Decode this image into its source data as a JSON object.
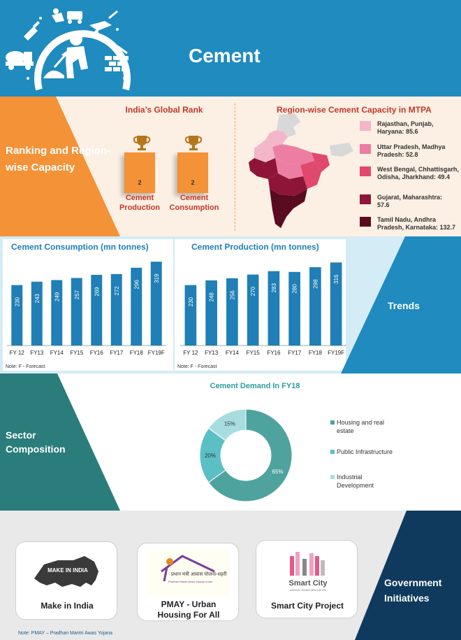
{
  "header": {
    "title": "Cement",
    "colors": {
      "primary": "#1f8bbf"
    },
    "icons": [
      "trowel-icon",
      "miner-cart-icon",
      "cement-mixer-truck-icon",
      "construction-worker-icon",
      "brick-wall-icon",
      "wheelbarrow-icon"
    ]
  },
  "ranking": {
    "section_label": "Ranking and Region-wise Capacity",
    "rank_title": "India’s Global Rank",
    "items": [
      {
        "rank": "2",
        "label_line1": "Cement",
        "label_line2": "Production"
      },
      {
        "rank": "2",
        "label_line1": "Cement",
        "label_line2": "Consumption"
      }
    ],
    "colors": {
      "orange": "#f39237",
      "accent_text": "#c0392b",
      "background": "#fcefe3"
    }
  },
  "region": {
    "title": "Region-wise Cement Capacity in MTPA",
    "legend": [
      {
        "color": "#f4b6c9",
        "line1": "Rajasthan, Punjab,",
        "line2": "Haryana: 85.6",
        "line3": ""
      },
      {
        "color": "#ec7ea3",
        "line1": "Uttar Pradesh, Madhya",
        "line2": "Pradesh: 52.8",
        "line3": ""
      },
      {
        "color": "#e0486e",
        "line1": "West Bengal, Chhattisgarh,",
        "line2": "Odisha, Jharkhand: 49.4",
        "line3": ""
      },
      {
        "color": "#8e1538",
        "line1": "Gujarat, Maharashtra:",
        "line2": "57.6",
        "line3": ""
      },
      {
        "color": "#5a0b20",
        "line1": "Tamil Nadu, Andhra",
        "line2": "Pradesh, Karnataka: 132.7",
        "line3": ""
      }
    ]
  },
  "trends": {
    "section_label": "Trends"
  },
  "chart_data": [
    {
      "type": "bar",
      "title": "Cement Consumption (mn tonnes)",
      "categories": [
        "FY 12",
        "FY13",
        "FY14",
        "FY15",
        "FY16",
        "FY17",
        "FY18",
        "FY19F"
      ],
      "values": [
        230,
        243,
        249,
        257,
        269,
        272,
        296,
        319
      ],
      "value_labels": [
        "230",
        "243",
        "249",
        "257",
        "269",
        "272",
        "296",
        "319"
      ],
      "note": "Note: F - Forecast",
      "color": "#1f7fb6"
    },
    {
      "type": "bar",
      "title": "Cement Production (mn tonnes)",
      "categories": [
        "FY 12",
        "FY13",
        "FY14",
        "FY15",
        "FY16",
        "FY17",
        "FY18",
        "FY19F"
      ],
      "values": [
        230,
        248,
        256,
        270,
        283,
        280,
        298,
        316
      ],
      "value_labels": [
        "230",
        "248",
        "256",
        "270",
        "283",
        "280",
        "298",
        "316"
      ],
      "note": "Note: F - Forecast",
      "color": "#1f7fb6"
    },
    {
      "type": "pie",
      "title": "Cement Demand In FY18",
      "categories": [
        "Housing and real estate",
        "Public Infrastructure",
        "Industrial Development"
      ],
      "values": [
        65,
        20,
        15
      ],
      "value_labels": [
        "65%",
        "20%",
        "15%"
      ],
      "colors": [
        "#4fa39f",
        "#5bbfc6",
        "#a8dde0"
      ]
    }
  ],
  "sector": {
    "section_label": "Sector Composition",
    "legend": [
      {
        "color": "#4fa39f",
        "line1": "Housing and real",
        "line2": "estate"
      },
      {
        "color": "#5bbfc6",
        "line1": "Public Infrastructure",
        "line2": ""
      },
      {
        "color": "#a8dde0",
        "line1": "Industrial",
        "line2": "Development"
      }
    ]
  },
  "government": {
    "section_label": "Government Initiatives",
    "initiatives": [
      {
        "label_line1": "Make in India",
        "label_line2": "",
        "logo_text": "MAKE IN INDIA",
        "icon": "lion-logo-icon"
      },
      {
        "label_line1": "PMAY - Urban",
        "label_line2": "Housing For All",
        "logo_text": "प्रधान मंत्री आवास योजना-शहरी",
        "logo_subtext": "Pradhan Mantri Awas Yojana-Urban",
        "icon": "house-logo-icon"
      },
      {
        "label_line1": "Smart City Project",
        "label_line2": "",
        "logo_text": "Smart City",
        "logo_subtext": "MISSION TRANSFORM-NATION",
        "icon": "smart-city-logo-icon"
      }
    ],
    "footnote": "Note: PMAY – Pradhan Mantri Awas Yojana",
    "colors": {
      "navy": "#0f3a5e"
    }
  }
}
